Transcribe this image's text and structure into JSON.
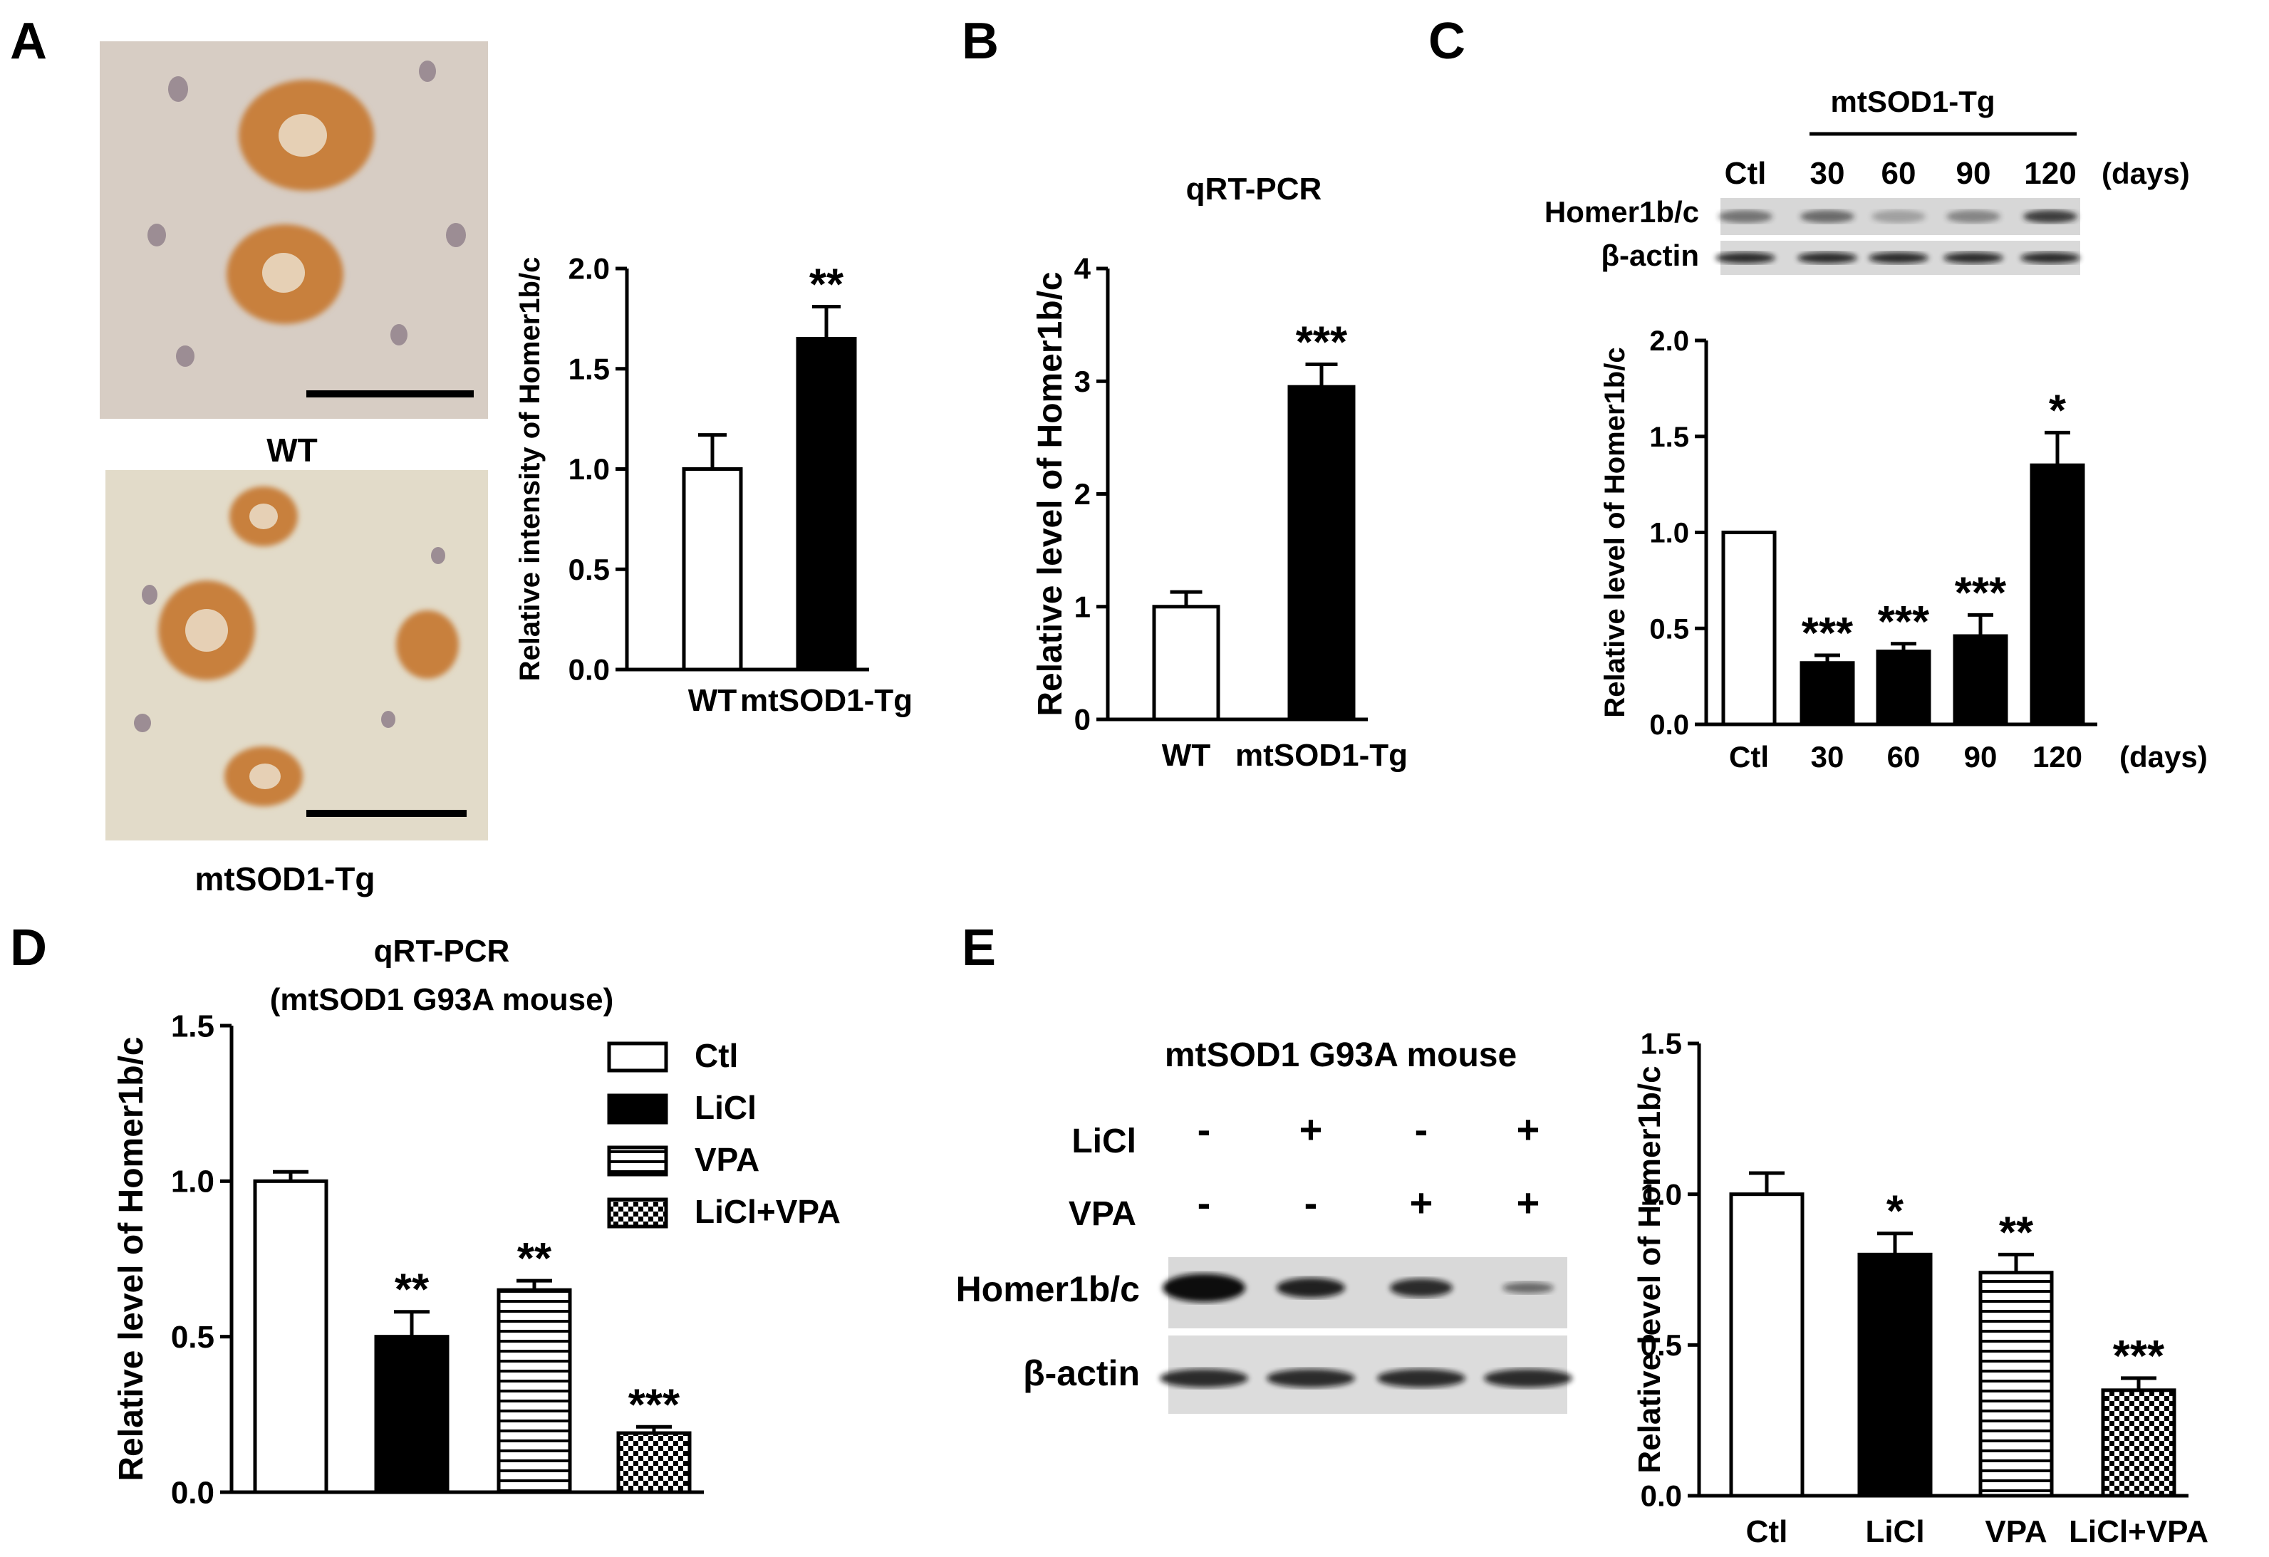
{
  "panels": {
    "A": {
      "letter": "A",
      "images": [
        {
          "label": "WT",
          "scale_bar": true
        },
        {
          "label": "mtSOD1-Tg",
          "scale_bar": true
        }
      ],
      "chart_ref": 0
    },
    "B": {
      "letter": "B",
      "chart_ref": 1
    },
    "C": {
      "letter": "C",
      "blot": {
        "group_label": "mtSOD1-Tg",
        "lanes": [
          "Ctl",
          "30",
          "60",
          "90",
          "120"
        ],
        "lane_unit": "(days)",
        "rows": [
          "Homer1b/c",
          "β-actin"
        ]
      },
      "chart_ref": 2
    },
    "D": {
      "letter": "D",
      "chart_ref": 3
    },
    "E": {
      "letter": "E",
      "blot": {
        "title": "mtSOD1 G93A mouse",
        "treatments": [
          {
            "name": "LiCl",
            "signs": [
              "-",
              "+",
              "-",
              "+"
            ]
          },
          {
            "name": "VPA",
            "signs": [
              "-",
              "-",
              "+",
              "+"
            ]
          }
        ],
        "rows": [
          "Homer1b/c",
          "β-actin"
        ]
      },
      "chart_ref": 4
    }
  },
  "colors": {
    "black": "#000000",
    "white": "#ffffff",
    "stain_bg": "#dcd3cb",
    "stain_cell": "#c8803c"
  },
  "chart_data": [
    {
      "type": "bar",
      "panel": "A",
      "categories": [
        "WT",
        "mtSOD1-Tg"
      ],
      "values": [
        1.0,
        1.65
      ],
      "errors": [
        0.17,
        0.16
      ],
      "fills": [
        "white",
        "black"
      ],
      "significance": [
        "",
        "**"
      ],
      "ylabel": "Relative intensity of Homer1b/c",
      "ylim": [
        0,
        2.0
      ],
      "yticks": [
        "0.0",
        "0.5",
        "1.0",
        "1.5",
        "2.0"
      ],
      "title": ""
    },
    {
      "type": "bar",
      "panel": "B",
      "categories": [
        "WT",
        "mtSOD1-Tg"
      ],
      "values": [
        1.0,
        2.95
      ],
      "errors": [
        0.13,
        0.2
      ],
      "fills": [
        "white",
        "black"
      ],
      "significance": [
        "",
        "***"
      ],
      "ylabel": "Relative level of Homer1b/c",
      "ylim": [
        0,
        4
      ],
      "yticks": [
        "0",
        "1",
        "2",
        "3",
        "4"
      ],
      "title": "qRT-PCR"
    },
    {
      "type": "bar",
      "panel": "C",
      "categories": [
        "Ctl",
        "30",
        "60",
        "90",
        "120"
      ],
      "x_unit": "(days)",
      "values": [
        1.0,
        0.32,
        0.38,
        0.46,
        1.35
      ],
      "errors": [
        0,
        0.04,
        0.04,
        0.11,
        0.17
      ],
      "fills": [
        "white",
        "black",
        "black",
        "black",
        "black"
      ],
      "significance": [
        "",
        "***",
        "***",
        "***",
        "*"
      ],
      "ylabel": "Relative level of Homer1b/c",
      "ylim": [
        0,
        2.0
      ],
      "yticks": [
        "0.0",
        "0.5",
        "1.0",
        "1.5",
        "2.0"
      ],
      "title": ""
    },
    {
      "type": "bar",
      "panel": "D",
      "categories": [
        "Ctl",
        "LiCl",
        "VPA",
        "LiCl+VPA"
      ],
      "values": [
        1.0,
        0.5,
        0.65,
        0.19
      ],
      "errors": [
        0.03,
        0.08,
        0.03,
        0.02
      ],
      "fills": [
        "white",
        "black",
        "stripes",
        "checker"
      ],
      "significance": [
        "",
        "**",
        "**",
        "***"
      ],
      "ylabel": "Relative level of Homer1b/c",
      "ylim": [
        0,
        1.5
      ],
      "yticks": [
        "0.0",
        "0.5",
        "1.0",
        "1.5"
      ],
      "title": "qRT-PCR",
      "subtitle": "(mtSOD1 G93A  mouse)",
      "legend": [
        "Ctl",
        "LiCl",
        "VPA",
        "LiCl+VPA"
      ],
      "legend_position": "top-right",
      "show_xticklabels": false
    },
    {
      "type": "bar",
      "panel": "E",
      "categories": [
        "Ctl",
        "LiCl",
        "VPA",
        "LiCl+VPA"
      ],
      "values": [
        1.0,
        0.8,
        0.74,
        0.35
      ],
      "errors": [
        0.07,
        0.07,
        0.06,
        0.04
      ],
      "fills": [
        "white",
        "black",
        "stripes",
        "checker"
      ],
      "significance": [
        "",
        "*",
        "**",
        "***"
      ],
      "ylabel": "Relative level of Homer1b/c",
      "ylim": [
        0,
        1.5
      ],
      "yticks": [
        "0.0",
        "0.5",
        "1.0",
        "1.5"
      ],
      "title": ""
    }
  ]
}
